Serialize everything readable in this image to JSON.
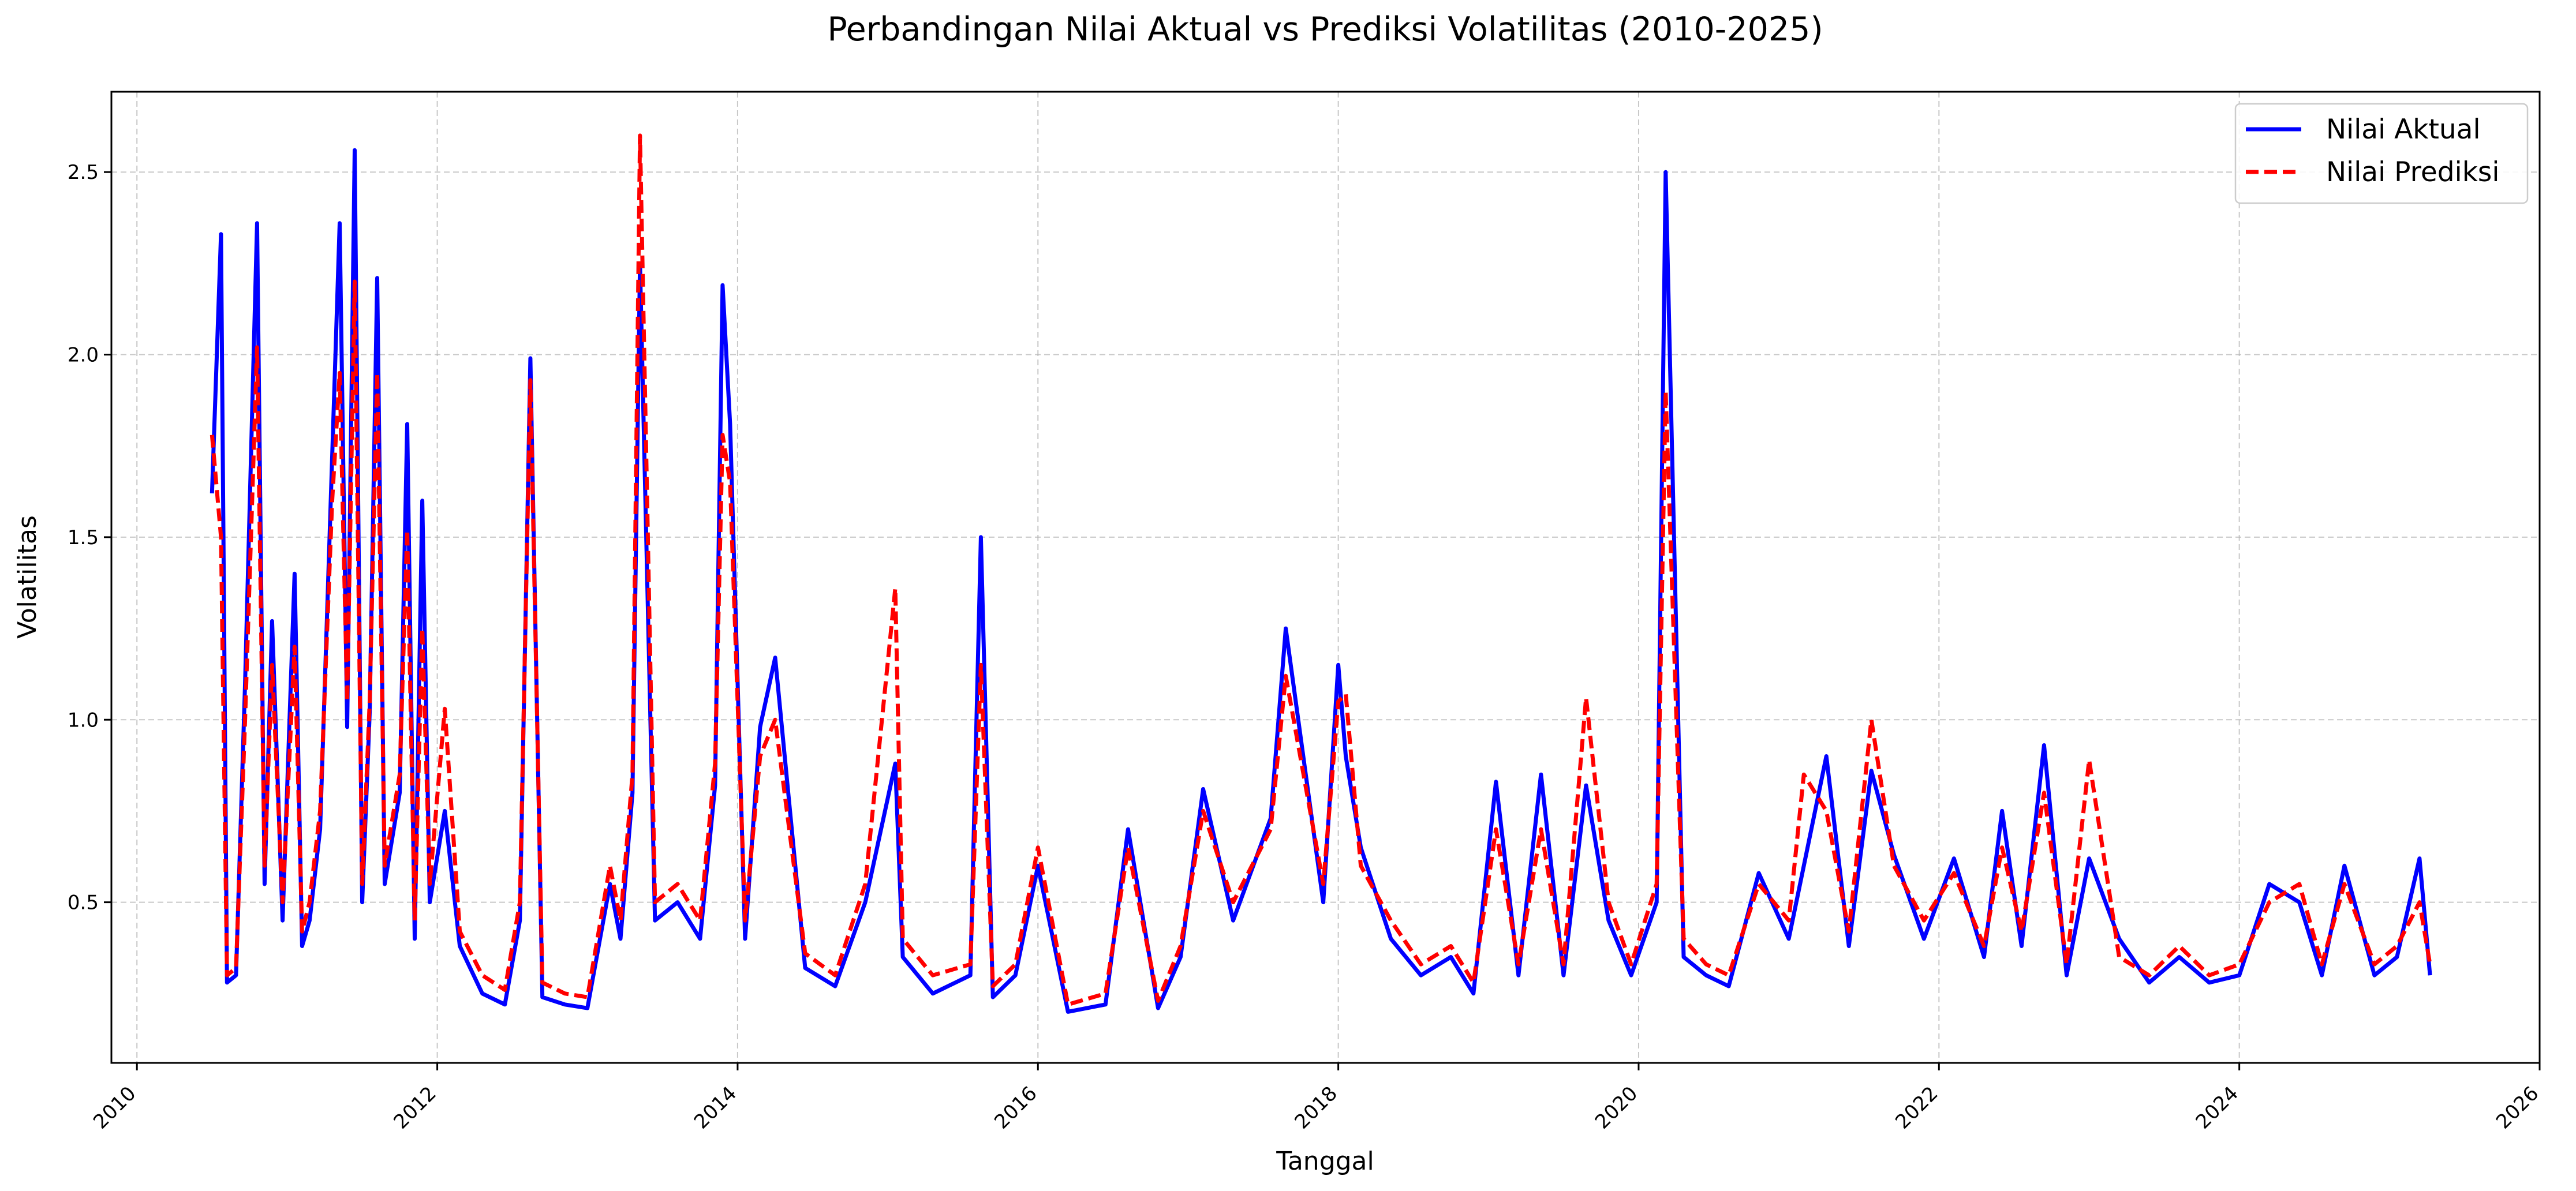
{
  "chart_data": {
    "type": "line",
    "title": "Perbandingan Nilai Aktual vs Prediksi Volatilitas (2010-2025)",
    "xlabel": "Tanggal",
    "ylabel": "Volatilitas",
    "xlim": [
      2009.83,
      2026.0
    ],
    "ylim": [
      0.06,
      2.72
    ],
    "x_ticks": [
      "2010",
      "2012",
      "2014",
      "2016",
      "2018",
      "2020",
      "2022",
      "2024",
      "2026"
    ],
    "y_ticks": [
      "0.5",
      "1.0",
      "1.5",
      "2.0",
      "2.5"
    ],
    "grid": true,
    "legend_position": "top-right",
    "series": [
      {
        "name": "Nilai Aktual",
        "color": "#0000ff",
        "style": "solid",
        "x": [
          2010.5,
          2010.56,
          2010.6,
          2010.66,
          2010.72,
          2010.8,
          2010.85,
          2010.9,
          2010.97,
          2011.05,
          2011.1,
          2011.15,
          2011.22,
          2011.3,
          2011.35,
          2011.4,
          2011.45,
          2011.5,
          2011.55,
          2011.6,
          2011.65,
          2011.75,
          2011.8,
          2011.85,
          2011.9,
          2011.95,
          2012.05,
          2012.15,
          2012.3,
          2012.45,
          2012.55,
          2012.62,
          2012.7,
          2012.85,
          2013.0,
          2013.15,
          2013.22,
          2013.3,
          2013.35,
          2013.45,
          2013.6,
          2013.75,
          2013.85,
          2013.9,
          2013.95,
          2014.05,
          2014.15,
          2014.25,
          2014.45,
          2014.65,
          2014.85,
          2015.05,
          2015.1,
          2015.3,
          2015.55,
          2015.62,
          2015.7,
          2015.85,
          2016.0,
          2016.2,
          2016.45,
          2016.6,
          2016.8,
          2016.95,
          2017.1,
          2017.3,
          2017.55,
          2017.65,
          2017.9,
          2018.0,
          2018.05,
          2018.15,
          2018.35,
          2018.55,
          2018.75,
          2018.9,
          2019.05,
          2019.2,
          2019.35,
          2019.5,
          2019.65,
          2019.8,
          2019.95,
          2020.12,
          2020.18,
          2020.3,
          2020.45,
          2020.6,
          2020.8,
          2021.0,
          2021.1,
          2021.25,
          2021.4,
          2021.55,
          2021.7,
          2021.9,
          2022.1,
          2022.3,
          2022.42,
          2022.55,
          2022.7,
          2022.85,
          2023.0,
          2023.2,
          2023.4,
          2023.6,
          2023.8,
          2024.0,
          2024.2,
          2024.4,
          2024.55,
          2024.7,
          2024.9,
          2025.05,
          2025.2,
          2025.27
        ],
        "y": [
          1.62,
          2.33,
          0.28,
          0.3,
          1.1,
          2.36,
          0.55,
          1.27,
          0.45,
          1.4,
          0.38,
          0.45,
          0.7,
          1.72,
          2.36,
          0.98,
          2.56,
          0.5,
          1.02,
          2.21,
          0.55,
          0.8,
          1.81,
          0.4,
          1.6,
          0.5,
          0.75,
          0.38,
          0.25,
          0.22,
          0.45,
          1.99,
          0.24,
          0.22,
          0.21,
          0.55,
          0.4,
          0.8,
          2.25,
          0.45,
          0.5,
          0.4,
          0.82,
          2.19,
          1.81,
          0.4,
          0.98,
          1.17,
          0.32,
          0.27,
          0.5,
          0.88,
          0.35,
          0.25,
          0.3,
          1.5,
          0.24,
          0.3,
          0.6,
          0.2,
          0.22,
          0.7,
          0.21,
          0.35,
          0.81,
          0.45,
          0.73,
          1.25,
          0.5,
          1.15,
          0.9,
          0.65,
          0.4,
          0.3,
          0.35,
          0.25,
          0.83,
          0.3,
          0.85,
          0.3,
          0.82,
          0.45,
          0.3,
          0.5,
          2.5,
          0.35,
          0.3,
          0.27,
          0.58,
          0.4,
          0.6,
          0.9,
          0.38,
          0.86,
          0.63,
          0.4,
          0.62,
          0.35,
          0.75,
          0.38,
          0.93,
          0.3,
          0.62,
          0.4,
          0.28,
          0.35,
          0.28,
          0.3,
          0.55,
          0.5,
          0.3,
          0.6,
          0.3,
          0.35,
          0.62,
          0.3
        ]
      },
      {
        "name": "Nilai Prediksi",
        "color": "#ff0000",
        "style": "dashed",
        "x": [
          2010.5,
          2010.56,
          2010.6,
          2010.66,
          2010.72,
          2010.8,
          2010.85,
          2010.9,
          2010.97,
          2011.05,
          2011.1,
          2011.15,
          2011.22,
          2011.3,
          2011.35,
          2011.4,
          2011.45,
          2011.5,
          2011.55,
          2011.6,
          2011.65,
          2011.75,
          2011.8,
          2011.85,
          2011.9,
          2011.95,
          2012.05,
          2012.15,
          2012.3,
          2012.45,
          2012.55,
          2012.62,
          2012.7,
          2012.85,
          2013.0,
          2013.15,
          2013.22,
          2013.3,
          2013.35,
          2013.45,
          2013.6,
          2013.75,
          2013.85,
          2013.9,
          2013.95,
          2014.05,
          2014.15,
          2014.25,
          2014.45,
          2014.65,
          2014.85,
          2015.05,
          2015.1,
          2015.3,
          2015.55,
          2015.62,
          2015.7,
          2015.85,
          2016.0,
          2016.2,
          2016.45,
          2016.6,
          2016.8,
          2016.95,
          2017.1,
          2017.3,
          2017.55,
          2017.65,
          2017.9,
          2018.0,
          2018.05,
          2018.15,
          2018.35,
          2018.55,
          2018.75,
          2018.9,
          2019.05,
          2019.2,
          2019.35,
          2019.5,
          2019.65,
          2019.8,
          2019.95,
          2020.12,
          2020.18,
          2020.3,
          2020.45,
          2020.6,
          2020.8,
          2021.0,
          2021.1,
          2021.25,
          2021.4,
          2021.55,
          2021.7,
          2021.9,
          2022.1,
          2022.3,
          2022.42,
          2022.55,
          2022.7,
          2022.85,
          2023.0,
          2023.2,
          2023.4,
          2023.6,
          2023.8,
          2024.0,
          2024.2,
          2024.4,
          2024.55,
          2024.7,
          2024.9,
          2025.05,
          2025.2,
          2025.27
        ],
        "y": [
          1.78,
          1.5,
          0.3,
          0.32,
          1.0,
          2.02,
          0.6,
          1.15,
          0.5,
          1.2,
          0.42,
          0.5,
          0.75,
          1.6,
          1.95,
          1.05,
          2.2,
          0.55,
          1.05,
          1.95,
          0.6,
          0.85,
          1.52,
          0.45,
          1.25,
          0.55,
          1.03,
          0.42,
          0.3,
          0.26,
          0.5,
          1.93,
          0.28,
          0.25,
          0.24,
          0.6,
          0.45,
          0.85,
          2.6,
          0.5,
          0.55,
          0.45,
          0.88,
          1.78,
          1.65,
          0.45,
          0.9,
          1.0,
          0.36,
          0.3,
          0.55,
          1.36,
          0.4,
          0.3,
          0.33,
          1.15,
          0.27,
          0.33,
          0.65,
          0.22,
          0.25,
          0.65,
          0.23,
          0.38,
          0.75,
          0.5,
          0.7,
          1.12,
          0.55,
          1.05,
          1.07,
          0.6,
          0.45,
          0.33,
          0.38,
          0.28,
          0.7,
          0.33,
          0.7,
          0.33,
          1.06,
          0.5,
          0.33,
          0.55,
          1.9,
          0.4,
          0.33,
          0.3,
          0.55,
          0.45,
          0.85,
          0.75,
          0.42,
          1.0,
          0.6,
          0.45,
          0.58,
          0.38,
          0.65,
          0.42,
          0.8,
          0.33,
          0.89,
          0.35,
          0.3,
          0.38,
          0.3,
          0.33,
          0.5,
          0.55,
          0.33,
          0.55,
          0.33,
          0.38,
          0.5,
          0.33
        ]
      }
    ]
  }
}
